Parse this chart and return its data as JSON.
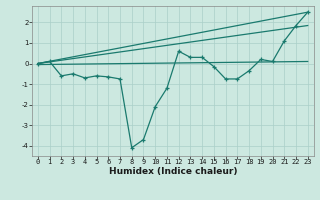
{
  "xlabel": "Humidex (Indice chaleur)",
  "background_color": "#cce8e0",
  "grid_color": "#aacfc8",
  "line_color": "#1a7a6e",
  "xlim": [
    -0.5,
    23.5
  ],
  "ylim": [
    -4.5,
    2.8
  ],
  "yticks": [
    -4,
    -3,
    -2,
    -1,
    0,
    1,
    2
  ],
  "xticks": [
    0,
    1,
    2,
    3,
    4,
    5,
    6,
    7,
    8,
    9,
    10,
    11,
    12,
    13,
    14,
    15,
    16,
    17,
    18,
    19,
    20,
    21,
    22,
    23
  ],
  "series1_x": [
    0,
    1,
    2,
    3,
    4,
    5,
    6,
    7,
    8,
    9,
    10,
    11,
    12,
    13,
    14,
    15,
    16,
    17,
    18,
    19,
    20,
    21,
    22,
    23
  ],
  "series1_y": [
    0.0,
    0.1,
    -0.6,
    -0.5,
    -0.7,
    -0.6,
    -0.65,
    -0.75,
    -4.1,
    -3.7,
    -2.1,
    -1.2,
    0.6,
    0.3,
    0.3,
    -0.15,
    -0.75,
    -0.75,
    -0.35,
    0.2,
    0.1,
    1.1,
    1.85,
    2.5
  ],
  "series2_x": [
    0,
    23
  ],
  "series2_y": [
    0.0,
    2.5
  ],
  "series3_x": [
    0,
    23
  ],
  "series3_y": [
    0.0,
    1.85
  ],
  "series4_x": [
    0,
    23
  ],
  "series4_y": [
    -0.05,
    0.1
  ],
  "ylabel_fontsize": 5.5,
  "xlabel_fontsize": 6.5,
  "tick_fontsize": 5.0
}
